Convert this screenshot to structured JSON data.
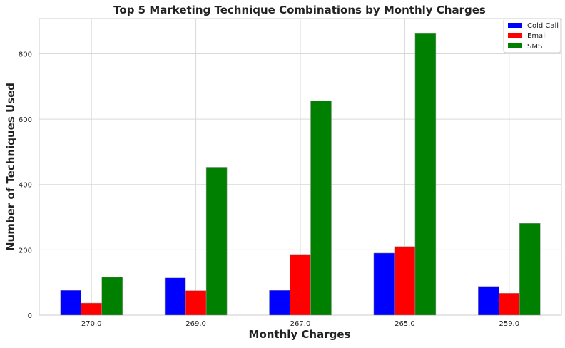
{
  "chart_data": {
    "type": "bar",
    "title": "Top 5 Marketing Technique Combinations by Monthly Charges",
    "xlabel": "Monthly Charges",
    "ylabel": "Number of Techniques Used",
    "categories": [
      "270.0",
      "269.0",
      "267.0",
      "265.0",
      "259.0"
    ],
    "series": [
      {
        "name": "Cold Call",
        "color": "#0000ff",
        "values": [
          76,
          114,
          76,
          190,
          88
        ]
      },
      {
        "name": "Email",
        "color": "#ff0000",
        "values": [
          37,
          75,
          186,
          210,
          67
        ]
      },
      {
        "name": "SMS",
        "color": "#008000",
        "values": [
          116,
          453,
          656,
          864,
          281
        ]
      }
    ],
    "ylim": [
      0,
      908
    ],
    "yticks": [
      0,
      200,
      400,
      600,
      800
    ],
    "grid": true,
    "legend_position": "top-right"
  }
}
